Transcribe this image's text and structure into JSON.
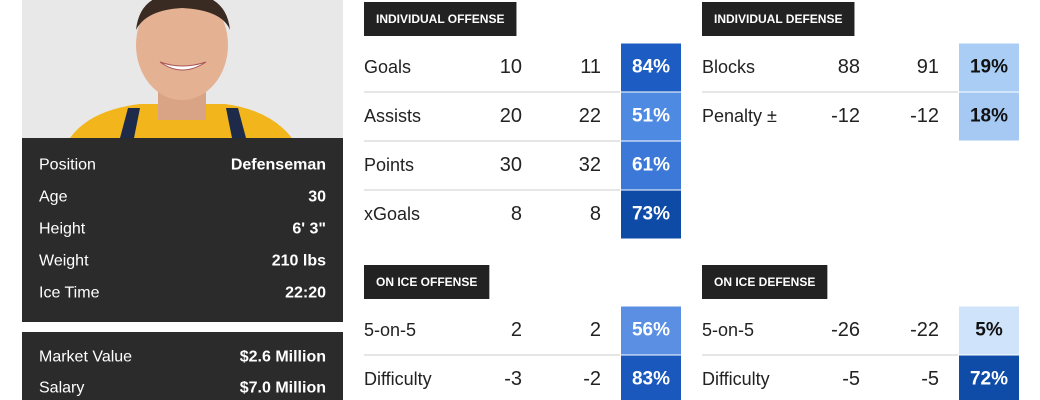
{
  "player": {
    "bio": [
      {
        "label": "Position",
        "value": "Defenseman"
      },
      {
        "label": "Age",
        "value": "30"
      },
      {
        "label": "Height",
        "value": "6' 3\""
      },
      {
        "label": "Weight",
        "value": "210 lbs"
      },
      {
        "label": "Ice Time",
        "value": "22:20"
      }
    ],
    "contract": [
      {
        "label": "Market Value",
        "value": "$2.6 Million"
      },
      {
        "label": "Salary",
        "value": "$7.0 Million"
      }
    ]
  },
  "sections": [
    {
      "title": "INDIVIDUAL OFFENSE",
      "rows": [
        {
          "label": "Goals",
          "values": [
            10,
            11
          ],
          "pct": "84%",
          "color": "#1d5cc2"
        },
        {
          "label": "Assists",
          "values": [
            20,
            22
          ],
          "pct": "51%",
          "color": "#4f8ae2"
        },
        {
          "label": "Points",
          "values": [
            30,
            32
          ],
          "pct": "61%",
          "color": "#3b78d8"
        },
        {
          "label": "xGoals",
          "values": [
            8,
            8
          ],
          "pct": "73%",
          "color": "#0e4ba6"
        }
      ]
    },
    {
      "title": "INDIVIDUAL DEFENSE",
      "rows": [
        {
          "label": "Blocks",
          "values": [
            88,
            91
          ],
          "pct": "19%",
          "color": "#a9cdf5"
        },
        {
          "label": "Penalty ±",
          "values": [
            -12,
            -12
          ],
          "pct": "18%",
          "color": "#a5c9f3"
        }
      ]
    },
    {
      "title": "ON ICE OFFENSE",
      "rows": [
        {
          "label": "5-on-5",
          "values": [
            2,
            2
          ],
          "pct": "56%",
          "color": "#5a8fe3"
        },
        {
          "label": "Difficulty",
          "values": [
            -3,
            -2
          ],
          "pct": "83%",
          "color": "#1a58bd"
        }
      ]
    },
    {
      "title": "ON ICE DEFENSE",
      "rows": [
        {
          "label": "5-on-5",
          "values": [
            -26,
            -22
          ],
          "pct": "5%",
          "color": "#cfe3fa"
        },
        {
          "label": "Difficulty",
          "values": [
            -5,
            -5
          ],
          "pct": "72%",
          "color": "#0f4ca8"
        }
      ]
    }
  ]
}
